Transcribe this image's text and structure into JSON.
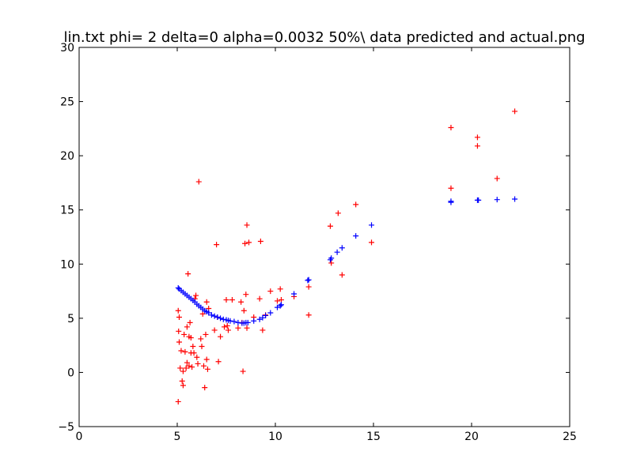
{
  "chart_data": {
    "type": "scatter",
    "title": "lin.txt  phi= 2 delta=0 alpha=0.0032 50%\\ data predicted and actual.png",
    "xlim": [
      0,
      25
    ],
    "ylim": [
      -5,
      30
    ],
    "x_ticks": [
      0,
      5,
      10,
      15,
      20,
      25
    ],
    "y_ticks": [
      -5,
      0,
      5,
      10,
      15,
      20,
      25,
      30
    ],
    "grid": false,
    "marker": "+",
    "series": [
      {
        "color": "#ff0000",
        "points": [
          [
            5.05,
            5.7
          ],
          [
            5.07,
            3.8
          ],
          [
            5.1,
            2.8
          ],
          [
            5.1,
            5.1
          ],
          [
            5.05,
            -2.7
          ],
          [
            5.15,
            0.4
          ],
          [
            5.2,
            2.0
          ],
          [
            5.25,
            -0.8
          ],
          [
            5.3,
            -1.2
          ],
          [
            5.3,
            0.1
          ],
          [
            5.35,
            3.5
          ],
          [
            5.4,
            1.9
          ],
          [
            5.45,
            0.4
          ],
          [
            5.5,
            0.9
          ],
          [
            5.5,
            4.2
          ],
          [
            5.55,
            9.1
          ],
          [
            5.6,
            0.6
          ],
          [
            5.6,
            3.3
          ],
          [
            5.65,
            4.6
          ],
          [
            5.7,
            3.2
          ],
          [
            5.7,
            1.8
          ],
          [
            5.75,
            0.5
          ],
          [
            5.8,
            2.4
          ],
          [
            5.85,
            1.8
          ],
          [
            5.9,
            6.8
          ],
          [
            5.95,
            7.1
          ],
          [
            6.0,
            1.4
          ],
          [
            6.05,
            0.8
          ],
          [
            6.1,
            17.6
          ],
          [
            6.2,
            3.1
          ],
          [
            6.25,
            2.4
          ],
          [
            6.3,
            5.4
          ],
          [
            6.35,
            0.6
          ],
          [
            6.4,
            -1.4
          ],
          [
            6.45,
            3.5
          ],
          [
            6.5,
            1.2
          ],
          [
            6.5,
            6.5
          ],
          [
            6.55,
            0.3
          ],
          [
            6.6,
            5.9
          ],
          [
            6.9,
            3.9
          ],
          [
            7.0,
            11.8
          ],
          [
            7.05,
            5.1
          ],
          [
            7.1,
            1.0
          ],
          [
            7.2,
            3.3
          ],
          [
            7.4,
            4.2
          ],
          [
            7.5,
            6.7
          ],
          [
            7.55,
            4.3
          ],
          [
            7.6,
            3.9
          ],
          [
            7.8,
            6.7
          ],
          [
            8.1,
            4.1
          ],
          [
            8.25,
            6.5
          ],
          [
            8.3,
            4.6
          ],
          [
            8.35,
            0.1
          ],
          [
            8.4,
            5.7
          ],
          [
            8.45,
            11.9
          ],
          [
            8.5,
            7.2
          ],
          [
            8.55,
            4.1
          ],
          [
            8.55,
            13.6
          ],
          [
            8.65,
            12.0
          ],
          [
            8.9,
            5.1
          ],
          [
            9.2,
            6.8
          ],
          [
            9.25,
            12.1
          ],
          [
            9.35,
            3.9
          ],
          [
            9.5,
            5.3
          ],
          [
            9.75,
            7.5
          ],
          [
            10.1,
            6.6
          ],
          [
            10.25,
            7.7
          ],
          [
            10.3,
            6.7
          ],
          [
            10.95,
            7.0
          ],
          [
            11.7,
            5.3
          ],
          [
            11.7,
            7.9
          ],
          [
            12.8,
            13.5
          ],
          [
            12.85,
            10.1
          ],
          [
            13.2,
            14.7
          ],
          [
            13.4,
            9.0
          ],
          [
            14.1,
            15.5
          ],
          [
            14.9,
            12.0
          ],
          [
            18.95,
            22.6
          ],
          [
            18.95,
            17.0
          ],
          [
            20.3,
            21.7
          ],
          [
            20.3,
            20.9
          ],
          [
            21.3,
            17.9
          ],
          [
            22.2,
            24.1
          ]
        ]
      },
      {
        "color": "#0000ff",
        "points": [
          [
            5.05,
            7.8
          ],
          [
            5.1,
            7.7
          ],
          [
            5.2,
            7.55
          ],
          [
            5.3,
            7.4
          ],
          [
            5.4,
            7.25
          ],
          [
            5.5,
            7.1
          ],
          [
            5.6,
            6.95
          ],
          [
            5.7,
            6.8
          ],
          [
            5.8,
            6.65
          ],
          [
            5.9,
            6.5
          ],
          [
            6.0,
            6.3
          ],
          [
            6.1,
            6.15
          ],
          [
            6.2,
            6.0
          ],
          [
            6.3,
            5.85
          ],
          [
            6.4,
            5.7
          ],
          [
            6.5,
            5.6
          ],
          [
            6.6,
            5.5
          ],
          [
            6.75,
            5.3
          ],
          [
            6.9,
            5.2
          ],
          [
            7.05,
            5.1
          ],
          [
            7.2,
            5.0
          ],
          [
            7.35,
            4.9
          ],
          [
            7.5,
            4.85
          ],
          [
            7.6,
            4.8
          ],
          [
            7.7,
            4.75
          ],
          [
            7.9,
            4.7
          ],
          [
            8.1,
            4.6
          ],
          [
            8.3,
            4.55
          ],
          [
            8.4,
            4.55
          ],
          [
            8.5,
            4.6
          ],
          [
            8.6,
            4.6
          ],
          [
            8.9,
            4.75
          ],
          [
            9.2,
            4.9
          ],
          [
            9.35,
            5.05
          ],
          [
            9.5,
            5.25
          ],
          [
            9.75,
            5.5
          ],
          [
            10.1,
            6.0
          ],
          [
            10.25,
            6.15
          ],
          [
            10.3,
            6.25
          ],
          [
            10.95,
            7.25
          ],
          [
            11.65,
            8.5
          ],
          [
            11.7,
            8.55
          ],
          [
            12.8,
            10.4
          ],
          [
            12.85,
            10.55
          ],
          [
            13.15,
            11.1
          ],
          [
            13.4,
            11.5
          ],
          [
            14.1,
            12.6
          ],
          [
            14.9,
            13.6
          ],
          [
            18.95,
            15.8
          ],
          [
            18.95,
            15.7
          ],
          [
            20.3,
            15.9
          ],
          [
            20.35,
            15.9
          ],
          [
            21.3,
            15.95
          ],
          [
            22.2,
            16.0
          ]
        ]
      }
    ]
  }
}
